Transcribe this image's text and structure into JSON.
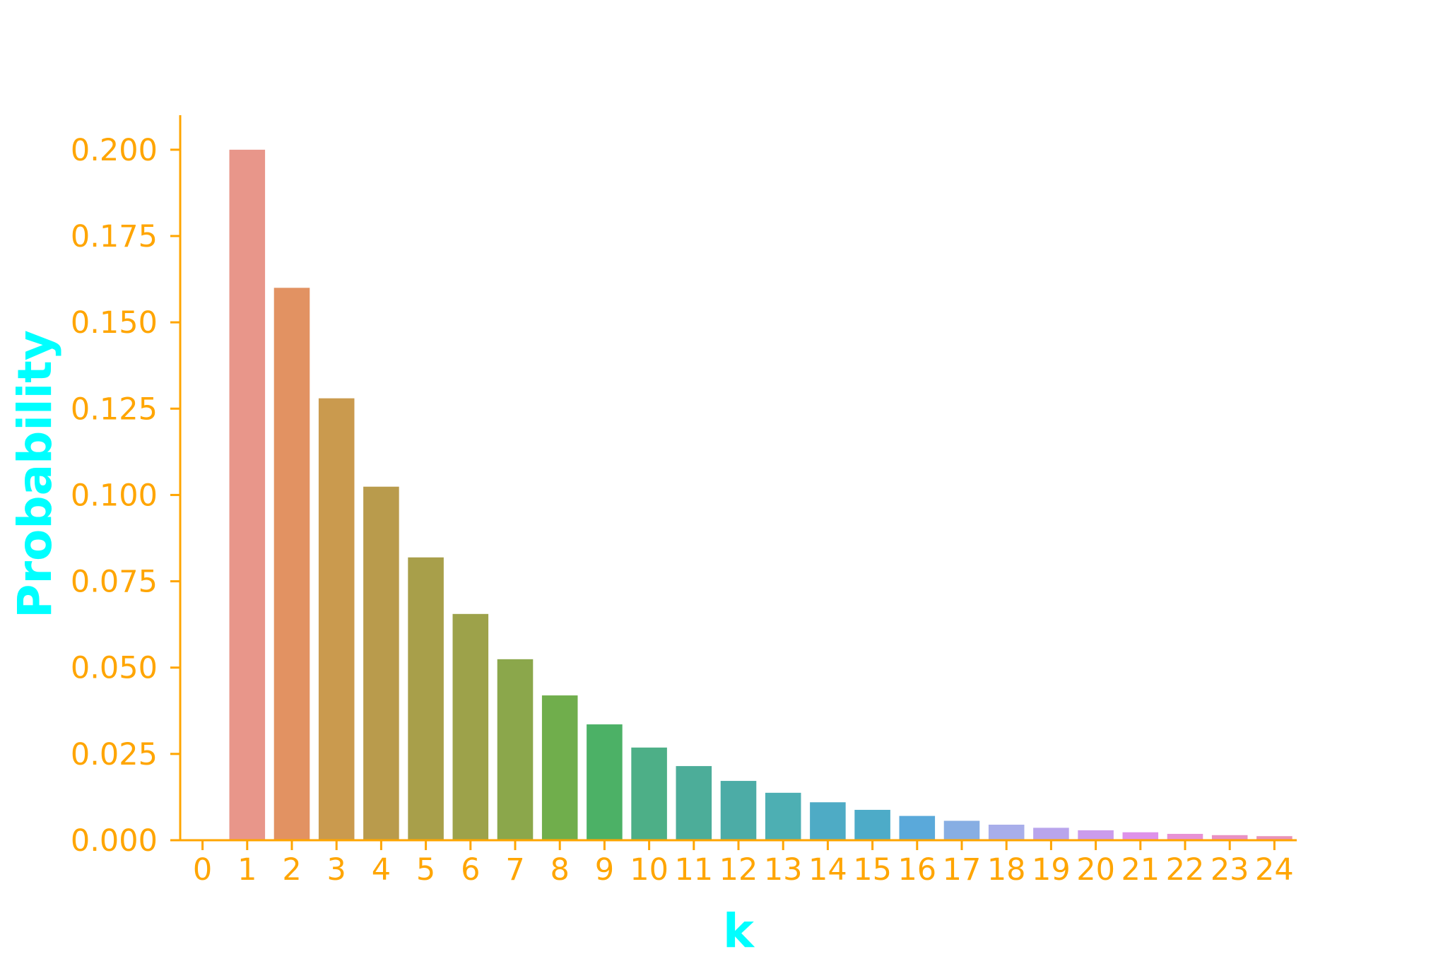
{
  "chart_data": {
    "type": "bar",
    "title": "",
    "xlabel": "k",
    "ylabel": "Probability",
    "categories": [
      "0",
      "1",
      "2",
      "3",
      "4",
      "5",
      "6",
      "7",
      "8",
      "9",
      "10",
      "11",
      "12",
      "13",
      "14",
      "15",
      "16",
      "17",
      "18",
      "19",
      "20",
      "21",
      "22",
      "23",
      "24"
    ],
    "values": [
      0.0,
      0.2,
      0.16,
      0.128,
      0.1024,
      0.08192,
      0.065536,
      0.0524288,
      0.04194304,
      0.033554432,
      0.0268435456,
      0.02147483648,
      0.017179869184,
      0.0137438953472,
      0.01099511627776,
      0.008796093022208,
      0.0070368744177664,
      0.00562949953421312,
      0.004503599627370496,
      0.0036028797018963967,
      0.0028823037615171173,
      0.002305843009213694,
      0.0018446744073709553,
      0.0014757395258967643,
      0.0011805916207174114
    ],
    "ylim": [
      0.0,
      0.21
    ],
    "yticks": [
      "0.000",
      "0.025",
      "0.050",
      "0.075",
      "0.100",
      "0.125",
      "0.150",
      "0.175",
      "0.200"
    ],
    "grid": false,
    "legend": "none",
    "colors": {
      "axis": "#FFA500",
      "tick_labels": "#FFA500",
      "axis_titles": "#00FFFF",
      "bars": [
        "#E8968A",
        "#E8968A",
        "#E29262",
        "#CA9A4E",
        "#B99B4C",
        "#A89F4A",
        "#9DA24A",
        "#8BA74B",
        "#70AE4C",
        "#4CB166",
        "#4DAF87",
        "#4CAD99",
        "#4CACA6",
        "#4DAFB3",
        "#4EABC5",
        "#4DABC8",
        "#5AA9DA",
        "#87AEE3",
        "#A8AEEA",
        "#B9A5EC",
        "#CB9CEC",
        "#DE92EA",
        "#E792D5",
        "#E991C4",
        "#E993B8"
      ]
    }
  }
}
